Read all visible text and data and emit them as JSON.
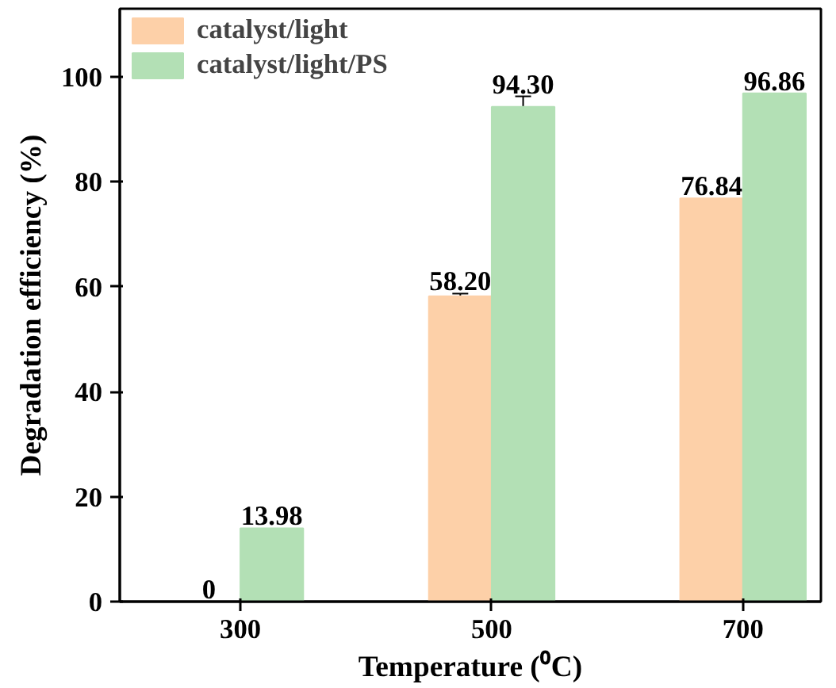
{
  "chart_data": {
    "type": "bar",
    "xlabel": "Temperature (⁰C)",
    "ylabel": "Degradation efficiency (%)",
    "categories": [
      "300",
      "500",
      "700"
    ],
    "series": [
      {
        "name": "catalyst/light",
        "color": "#fdd0a8",
        "values": [
          0,
          58.2,
          76.84
        ],
        "value_labels": [
          "0",
          "58.20",
          "76.84"
        ],
        "errors": [
          null,
          0.5,
          null
        ]
      },
      {
        "name": "catalyst/light/PS",
        "color": "#b3e0b5",
        "values": [
          13.98,
          94.3,
          96.86
        ],
        "value_labels": [
          "13.98",
          "94.30",
          "96.86"
        ],
        "errors": [
          null,
          2,
          null
        ]
      }
    ],
    "ylim": [
      0,
      113
    ],
    "yticks": [
      0,
      20,
      40,
      60,
      80,
      100
    ],
    "grid": false,
    "legend": "top left"
  }
}
